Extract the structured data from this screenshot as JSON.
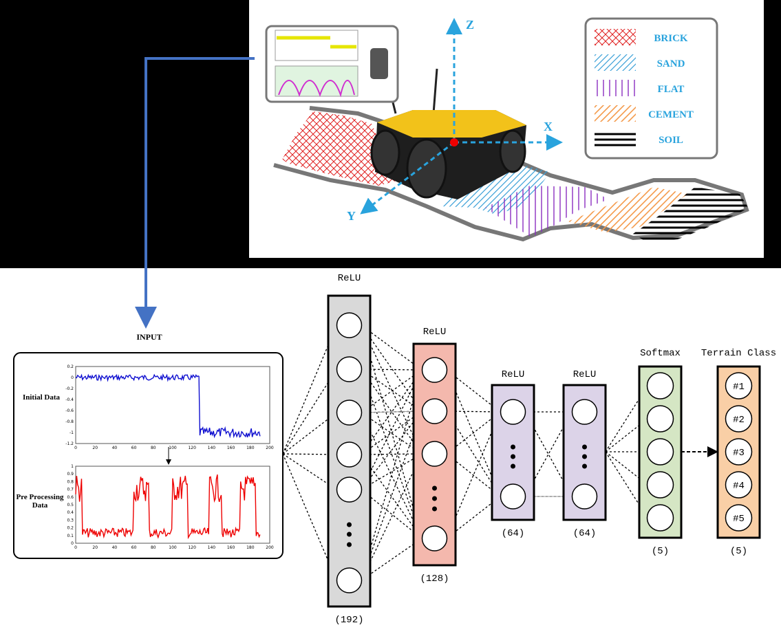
{
  "scene": {
    "axes": {
      "z": "Z",
      "x": "X",
      "y": "Y"
    },
    "legend": [
      "BRICK",
      "SAND",
      "FLAT",
      "CEMENT",
      "SOIL"
    ]
  },
  "input": {
    "title": "INPUT",
    "plots": [
      {
        "label": "Initial Data",
        "yticks": [
          "0.2",
          "0",
          "-0.2",
          "-0.4",
          "-0.6",
          "-0.8",
          "-1",
          "-1.2"
        ],
        "xticks": [
          "0",
          "20",
          "40",
          "60",
          "80",
          "100",
          "120",
          "140",
          "160",
          "180",
          "200"
        ]
      },
      {
        "label": "Pre Processing Data",
        "yticks": [
          "1",
          "0.9",
          "0.8",
          "0.7",
          "0.6",
          "0.5",
          "0.4",
          "0.3",
          "0.2",
          "0.1",
          "0"
        ],
        "xticks": [
          "0",
          "20",
          "40",
          "60",
          "80",
          "100",
          "120",
          "140",
          "160",
          "180",
          "200"
        ]
      }
    ]
  },
  "layers": [
    {
      "activation": "ReLU",
      "size": "(192)"
    },
    {
      "activation": "ReLU",
      "size": "(128)"
    },
    {
      "activation": "ReLU",
      "size": "(64)"
    },
    {
      "activation": "ReLU",
      "size": "(64)"
    },
    {
      "activation": "Softmax",
      "size": "(5)"
    },
    {
      "activation": "Terrain Class",
      "size": "(5)",
      "nodes": [
        "#1",
        "#2",
        "#3",
        "#4",
        "#5"
      ]
    }
  ]
}
